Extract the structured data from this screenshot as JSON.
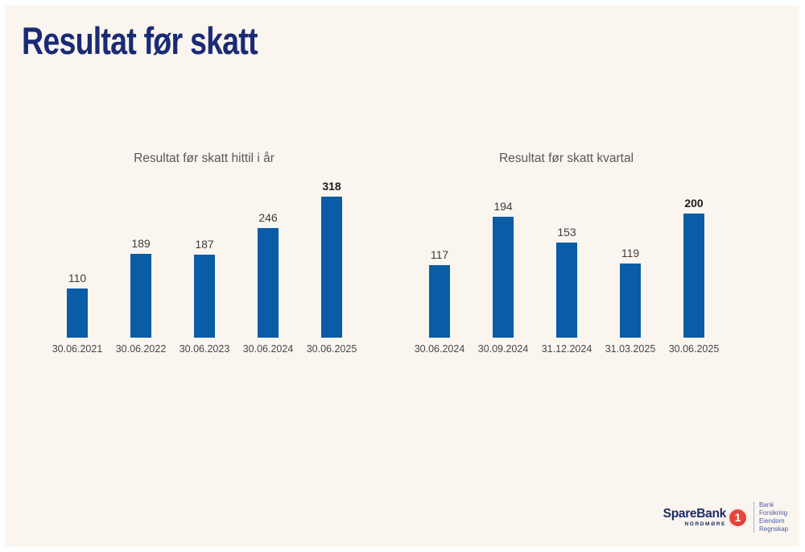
{
  "page": {
    "title": "Resultat før skatt"
  },
  "chart_data": [
    {
      "type": "bar",
      "title": "Resultat før skatt hittil i år",
      "categories": [
        "30.06.2021",
        "30.06.2022",
        "30.06.2023",
        "30.06.2024",
        "30.06.2025"
      ],
      "values": [
        110,
        189,
        187,
        246,
        318
      ],
      "emphasis_index": 4,
      "xlabel": "",
      "ylabel": "",
      "ylim": [
        0,
        350
      ],
      "grid": false,
      "legend": false,
      "bar_color": "#0A5CA6"
    },
    {
      "type": "bar",
      "title": "Resultat før skatt kvartal",
      "categories": [
        "30.06.2024",
        "30.09.2024",
        "31.12.2024",
        "31.03.2025",
        "30.06.2025"
      ],
      "values": [
        117,
        194,
        153,
        119,
        200
      ],
      "emphasis_index": 4,
      "xlabel": "",
      "ylabel": "",
      "ylim": [
        0,
        250
      ],
      "grid": false,
      "legend": false,
      "bar_color": "#0A5CA6"
    }
  ],
  "logo": {
    "brand": "SpareBank",
    "one": "1",
    "region": "NORDMØRE",
    "services": [
      "Bank",
      "Forsikring",
      "Eiendom",
      "Regnskap"
    ]
  },
  "colors": {
    "slide_background": "#FBF5EF",
    "page_border": "#FFFFFF",
    "bar_blue": "#0A5CA6",
    "title_navy": "#1A2B75",
    "chart_title_gray": "#58595B",
    "value_label": "#3D3D3D",
    "value_label_bold": "#1C1C1C",
    "axis_label": "#474747",
    "logo_navy": "#1D2A68",
    "logo_red": "#E8453C",
    "logo_services_blue": "#4C5CA5"
  }
}
